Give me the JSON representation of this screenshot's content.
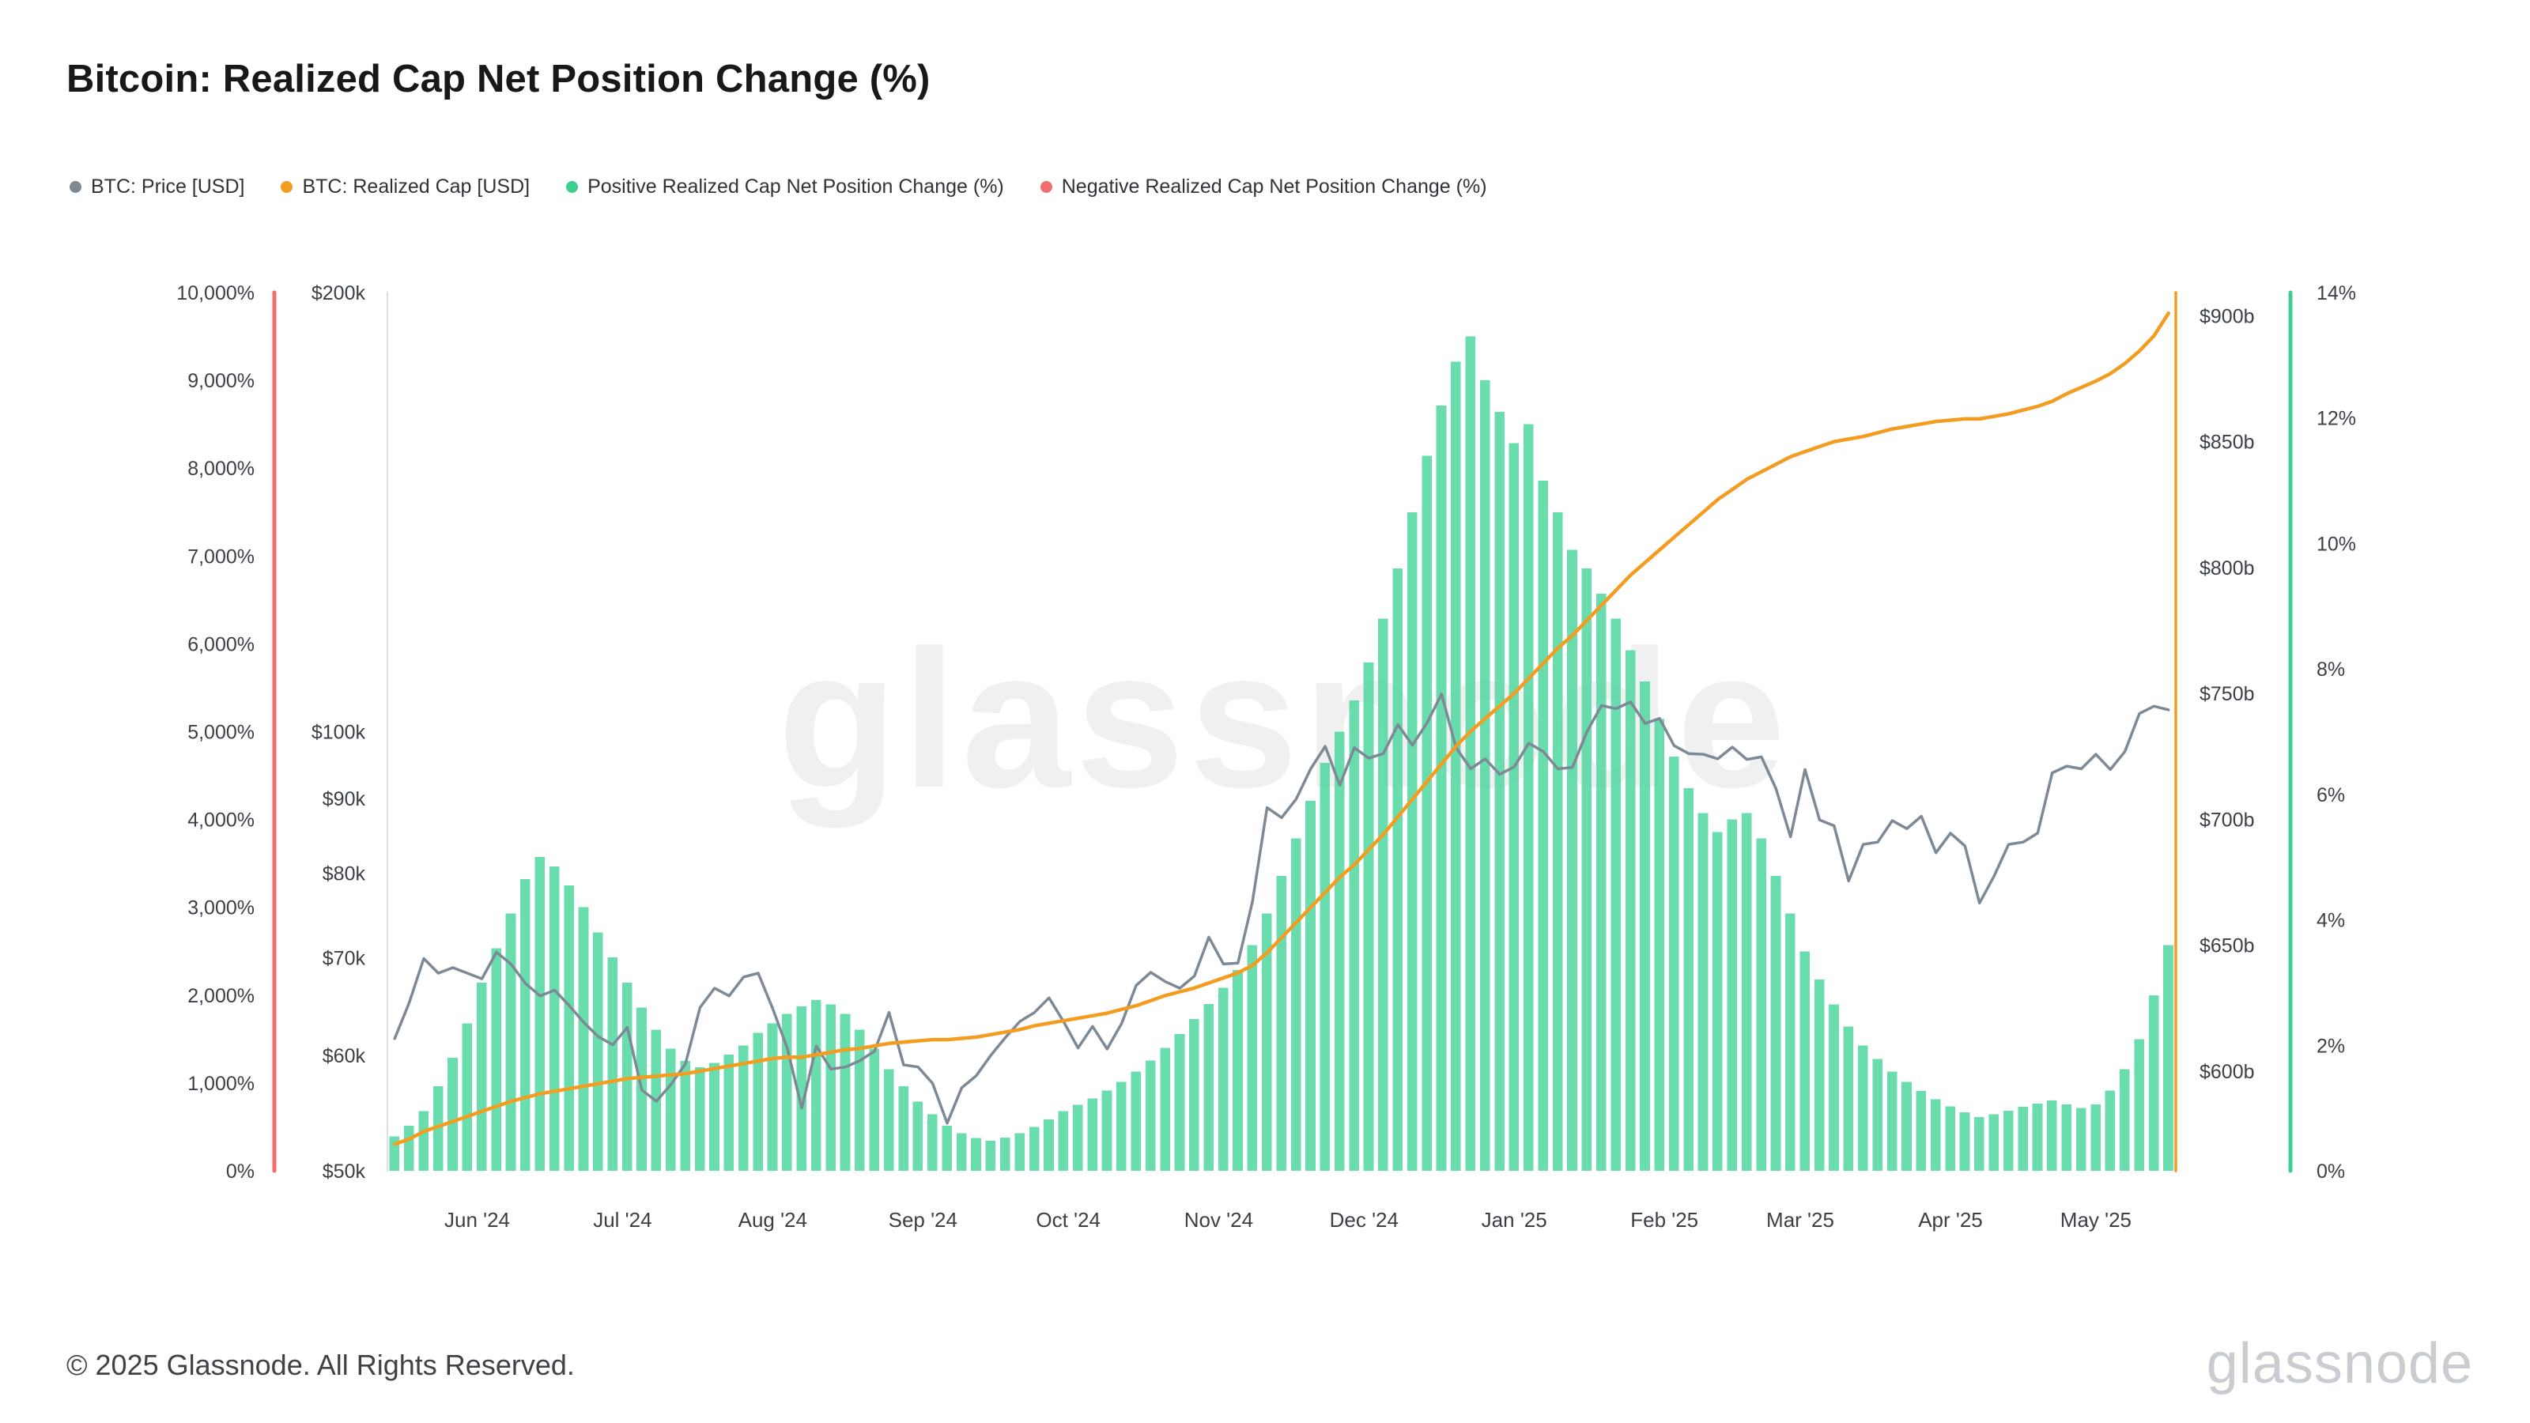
{
  "page": {
    "title": "Bitcoin: Realized Cap Net Position Change (%)",
    "footer_copyright": "© 2025 Glassnode. All Rights Reserved.",
    "brand_logo_text": "glassnode"
  },
  "legend": [
    {
      "label": "BTC: Price [USD]",
      "color": "#7d8a96"
    },
    {
      "label": "BTC: Realized Cap [USD]",
      "color": "#f39c1f"
    },
    {
      "label": "Positive Realized Cap Net Position Change (%)",
      "color": "#3ecf90"
    },
    {
      "label": "Negative Realized Cap Net Position Change (%)",
      "color": "#f26d6d"
    }
  ],
  "chart_data": {
    "type": "mixed",
    "title": "Bitcoin: Realized Cap Net Position Change (%)",
    "watermark": "glassnode",
    "x_axis": {
      "tick_labels": [
        "Jun '24",
        "Jul '24",
        "Aug '24",
        "Sep '24",
        "Oct '24",
        "Nov '24",
        "Dec '24",
        "Jan '25",
        "Feb '25",
        "Mar '25",
        "Apr '25",
        "May '25"
      ],
      "tick_positions": [
        5.67,
        15.67,
        26.0,
        36.33,
        46.33,
        56.67,
        66.67,
        77.0,
        87.33,
        96.67,
        107.0,
        117.0
      ],
      "note": "data points at ~3-day intervals, mid-May 2024 to mid-May 2025"
    },
    "axes": {
      "left_negative_pct": {
        "unit": "%",
        "color": "#f26d6d",
        "scale": "linear",
        "range": [
          0,
          10000
        ],
        "tick_values": [
          0,
          1000,
          2000,
          3000,
          4000,
          5000,
          6000,
          7000,
          8000,
          9000,
          10000
        ],
        "tick_labels": [
          "0%",
          "1,000%",
          "2,000%",
          "3,000%",
          "4,000%",
          "5,000%",
          "6,000%",
          "7,000%",
          "8,000%",
          "9,000%",
          "10,000%"
        ]
      },
      "left_price": {
        "unit": "USD (thousands)",
        "color": "#7d8a96",
        "scale": "log",
        "range": [
          50,
          200
        ],
        "tick_values": [
          50,
          60,
          70,
          80,
          90,
          100,
          200
        ],
        "tick_labels": [
          "$50k",
          "$60k",
          "$70k",
          "$80k",
          "$90k",
          "$100k",
          "$200k"
        ]
      },
      "right_cap": {
        "unit": "USD (billions)",
        "color": "#f39c1f",
        "scale": "linear",
        "range": [
          560.4,
          909.2
        ],
        "tick_values": [
          600,
          650,
          700,
          750,
          800,
          850,
          900
        ],
        "tick_labels": [
          "$600b",
          "$650b",
          "$700b",
          "$750b",
          "$800b",
          "$850b",
          "$900b"
        ]
      },
      "right_positive_pct": {
        "unit": "%",
        "color": "#3ecf90",
        "scale": "linear",
        "range": [
          0,
          14
        ],
        "tick_values": [
          0,
          2,
          4,
          6,
          8,
          10,
          12,
          14
        ],
        "tick_labels": [
          "0%",
          "2%",
          "4%",
          "6%",
          "8%",
          "10%",
          "12%",
          "14%"
        ]
      }
    },
    "series": [
      {
        "id": "positive-change-bars",
        "name": "Positive Realized Cap Net Position Change (%)",
        "type": "bar",
        "axis": "right_positive_pct",
        "color": "#4fd79f",
        "values": [
          0.55,
          0.72,
          0.95,
          1.35,
          1.8,
          2.35,
          3.0,
          3.55,
          4.1,
          4.65,
          5.0,
          4.85,
          4.55,
          4.2,
          3.8,
          3.4,
          3.0,
          2.6,
          2.25,
          1.95,
          1.75,
          1.65,
          1.72,
          1.85,
          2.0,
          2.2,
          2.35,
          2.5,
          2.62,
          2.72,
          2.65,
          2.5,
          2.25,
          1.95,
          1.62,
          1.35,
          1.1,
          0.9,
          0.72,
          0.6,
          0.52,
          0.48,
          0.53,
          0.6,
          0.7,
          0.82,
          0.95,
          1.05,
          1.15,
          1.28,
          1.42,
          1.58,
          1.76,
          1.96,
          2.18,
          2.42,
          2.66,
          2.92,
          3.2,
          3.6,
          4.1,
          4.7,
          5.3,
          5.9,
          6.5,
          7.0,
          7.5,
          8.1,
          8.8,
          9.6,
          10.5,
          11.4,
          12.2,
          12.9,
          13.3,
          12.6,
          12.1,
          11.6,
          11.9,
          11.0,
          10.5,
          9.9,
          9.6,
          9.2,
          8.8,
          8.3,
          7.8,
          7.2,
          6.6,
          6.1,
          5.7,
          5.4,
          5.6,
          5.7,
          5.3,
          4.7,
          4.1,
          3.5,
          3.05,
          2.65,
          2.3,
          2.0,
          1.78,
          1.58,
          1.42,
          1.27,
          1.14,
          1.03,
          0.93,
          0.86,
          0.9,
          0.96,
          1.02,
          1.07,
          1.12,
          1.06,
          1.0,
          1.06,
          1.28,
          1.62,
          2.1,
          2.8,
          3.6
        ]
      },
      {
        "id": "btc-price-line",
        "name": "BTC: Price [USD]",
        "type": "line",
        "axis": "left_price",
        "color": "#7d8a96",
        "values": [
          61.6,
          65.2,
          69.9,
          68.3,
          68.9,
          68.3,
          67.7,
          70.6,
          69.3,
          67.2,
          65.9,
          66.5,
          64.9,
          63.2,
          61.8,
          61.0,
          62.7,
          56.8,
          55.8,
          57.3,
          59.2,
          64.7,
          66.7,
          65.9,
          67.9,
          68.3,
          64.6,
          60.7,
          55.2,
          60.9,
          58.7,
          58.9,
          59.5,
          60.4,
          64.2,
          59.1,
          58.9,
          57.4,
          53.9,
          57.0,
          58.1,
          60.0,
          61.7,
          63.3,
          64.2,
          65.7,
          63.3,
          60.7,
          62.8,
          60.6,
          63.1,
          67.0,
          68.4,
          67.4,
          66.7,
          68.0,
          72.3,
          69.3,
          69.4,
          76.5,
          88.7,
          87.3,
          89.9,
          94.3,
          97.7,
          91.9,
          97.5,
          95.9,
          96.6,
          101.1,
          97.9,
          101.4,
          106.1,
          97.5,
          94.3,
          95.8,
          93.5,
          94.6,
          98.2,
          96.9,
          94.3,
          94.5,
          100.0,
          104.2,
          103.7,
          104.8,
          101.3,
          102.1,
          97.8,
          96.6,
          96.5,
          95.8,
          97.6,
          95.7,
          96.1,
          91.4,
          84.7,
          94.2,
          87.0,
          86.2,
          79.0,
          83.7,
          84.0,
          86.9,
          85.8,
          87.5,
          82.6,
          85.2,
          83.5,
          76.3,
          79.6,
          83.7,
          84.0,
          85.2,
          93.7,
          94.7,
          94.3,
          96.5,
          94.2,
          96.9,
          102.9,
          104.1,
          103.5
        ]
      },
      {
        "id": "realized-cap-line",
        "name": "BTC: Realized Cap [USD]",
        "type": "line",
        "axis": "right_cap",
        "color": "#f39c1f",
        "values": [
          571,
          573,
          576,
          578,
          580,
          582,
          584,
          586,
          588,
          589.5,
          591,
          592,
          593,
          594,
          595,
          596,
          597,
          597.5,
          598,
          598.5,
          599,
          600,
          601,
          602,
          603,
          604,
          605,
          605.5,
          605.5,
          606.5,
          607.5,
          608.5,
          609,
          610,
          611,
          611.5,
          612,
          612.5,
          612.5,
          613,
          613.5,
          614.5,
          615.5,
          616.5,
          618,
          619,
          620,
          621,
          622,
          623,
          624.5,
          626,
          628,
          630,
          631.5,
          633,
          635,
          637,
          639,
          642,
          647,
          653,
          659,
          665,
          671,
          677,
          682,
          688,
          694,
          701,
          708,
          715,
          722,
          729,
          735,
          740,
          745,
          750,
          756,
          762,
          768,
          773,
          779,
          785,
          791,
          797,
          802,
          807,
          812,
          817,
          822,
          827,
          831,
          835,
          838,
          841,
          844,
          846,
          848,
          850,
          851,
          852,
          853.5,
          855,
          856,
          857,
          858,
          858.5,
          859,
          859,
          860,
          861,
          862.5,
          864,
          866,
          869,
          871.5,
          874,
          877,
          881,
          886,
          892,
          901
        ]
      },
      {
        "id": "negative-change-bars",
        "name": "Negative Realized Cap Net Position Change (%)",
        "type": "bar",
        "axis": "left_negative_pct",
        "color": "#f26d6d",
        "values": []
      }
    ]
  }
}
